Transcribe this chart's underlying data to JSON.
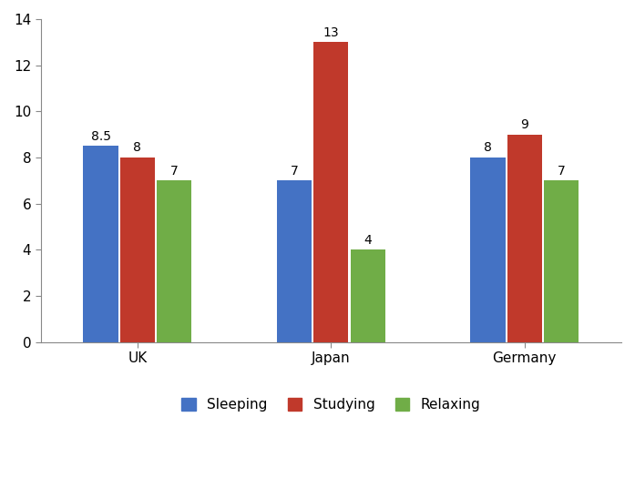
{
  "categories": [
    "UK",
    "Japan",
    "Germany"
  ],
  "series": {
    "Sleeping": [
      8.5,
      7,
      8
    ],
    "Studying": [
      8,
      13,
      9
    ],
    "Relaxing": [
      7,
      4,
      7
    ]
  },
  "colors": {
    "Sleeping": "#4472C4",
    "Studying": "#C0392B",
    "Relaxing": "#70AD47"
  },
  "ylim": [
    0,
    14
  ],
  "yticks": [
    0,
    2,
    4,
    6,
    8,
    10,
    12,
    14
  ],
  "bar_width": 0.18,
  "background_color": "#FFFFFF",
  "tick_fontsize": 11,
  "legend_fontsize": 11,
  "annotation_fontsize": 10
}
